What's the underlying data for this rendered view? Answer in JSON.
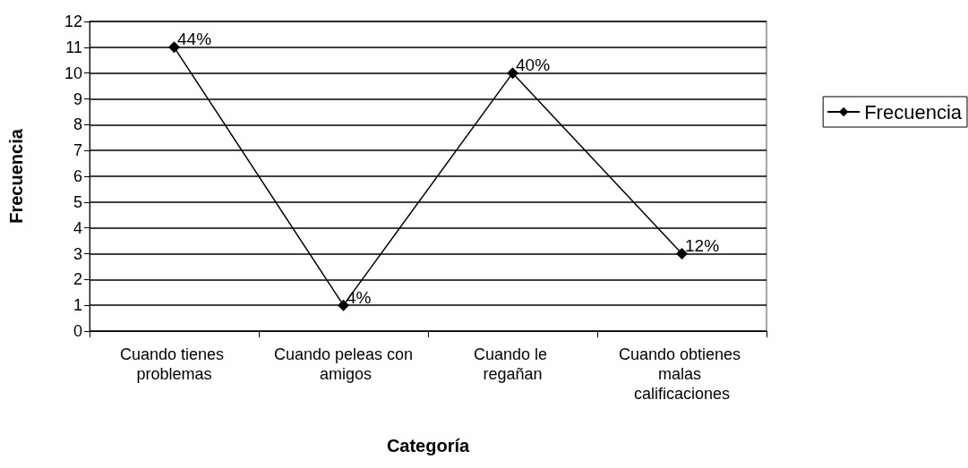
{
  "chart_data": {
    "type": "line",
    "xlabel": "Categoría",
    "ylabel": "Frecuencia",
    "categories": [
      "Cuando tienes problemas",
      "Cuando peleas con amigos",
      "Cuando le regañan",
      "Cuando obtienes malas calificaciones"
    ],
    "series": [
      {
        "name": "Frecuencia",
        "color": "#000000",
        "values": [
          11,
          1,
          10,
          3
        ]
      }
    ],
    "annotations": [
      {
        "text": "44%",
        "x": "Cuando tienes problemas",
        "y": 11
      },
      {
        "text": "4%",
        "x": "Cuando peleas con amigos",
        "y": 1
      },
      {
        "text": "40%",
        "x": "Cuando le regañan",
        "y": 10
      },
      {
        "text": "12%",
        "x": "Cuando obtienes malas calificaciones",
        "y": 3
      }
    ],
    "ylim": [
      0,
      12
    ],
    "yticks": [
      0,
      1,
      2,
      3,
      4,
      5,
      6,
      7,
      8,
      9,
      10,
      11,
      12
    ],
    "grid": "y",
    "legend": "right",
    "marker": "diamond",
    "line_style": "solid"
  }
}
